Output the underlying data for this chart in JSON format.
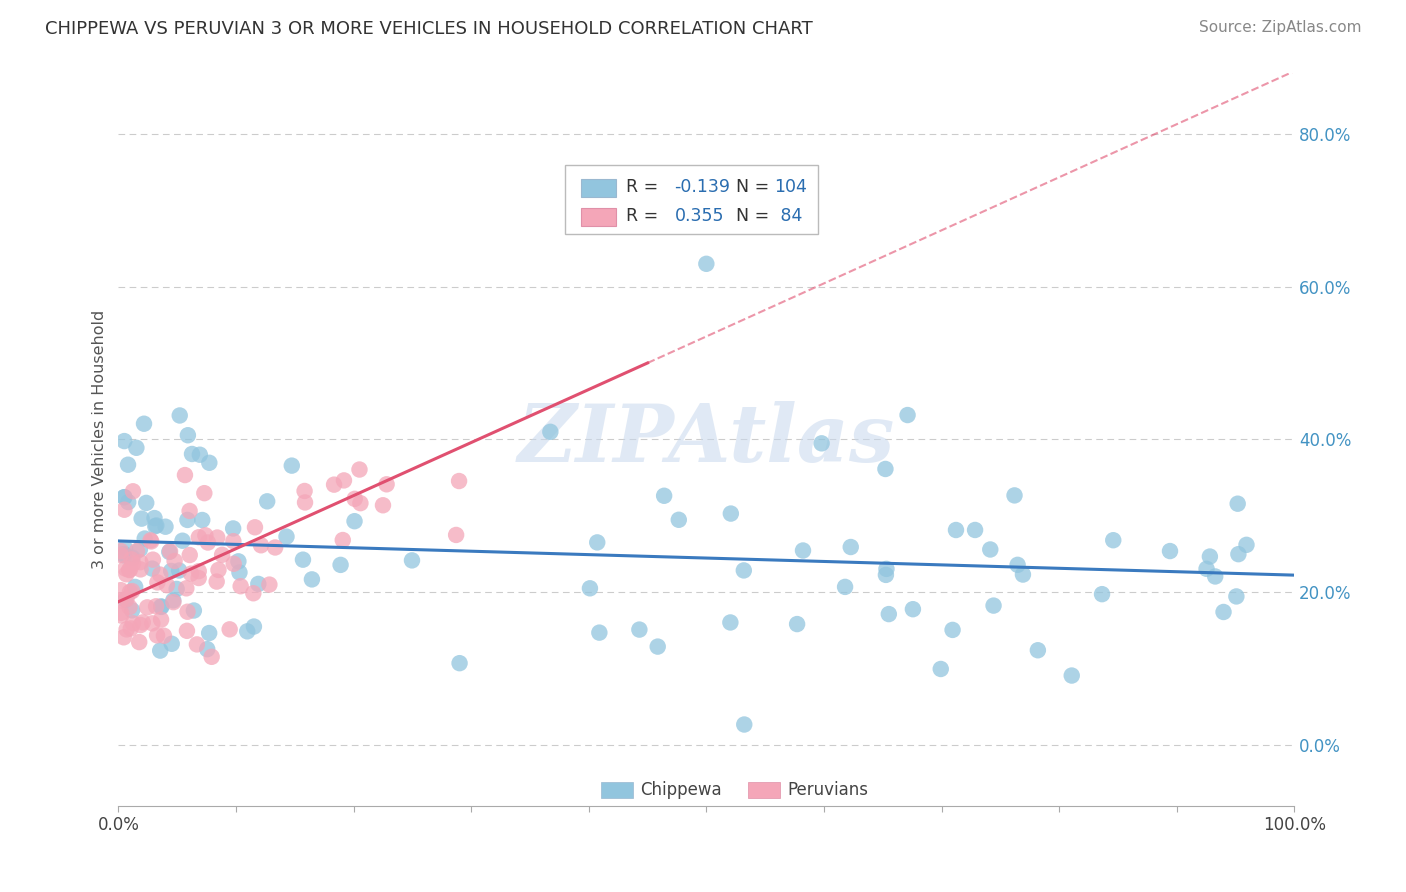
{
  "title": "CHIPPEWA VS PERUVIAN 3 OR MORE VEHICLES IN HOUSEHOLD CORRELATION CHART",
  "source": "Source: ZipAtlas.com",
  "ylabel": "3 or more Vehicles in Household",
  "watermark": "ZIPAtlas",
  "chippewa_color": "#92c5de",
  "peruvian_color": "#f4a6b8",
  "chippewa_line_color": "#3a7abf",
  "peruvian_line_color": "#e05070",
  "chippewa_R": -0.139,
  "chippewa_N": 104,
  "peruvian_R": 0.355,
  "peruvian_N": 84,
  "ytick_values": [
    0,
    20,
    40,
    60,
    80
  ],
  "xlim": [
    0,
    100
  ],
  "ylim": [
    -8,
    88
  ],
  "background_color": "#ffffff",
  "grid_color": "#cccccc",
  "title_color": "#333333",
  "source_color": "#888888",
  "ylabel_color": "#555555",
  "yticklabel_color": "#4393c3",
  "xticklabel_color": "#444444"
}
